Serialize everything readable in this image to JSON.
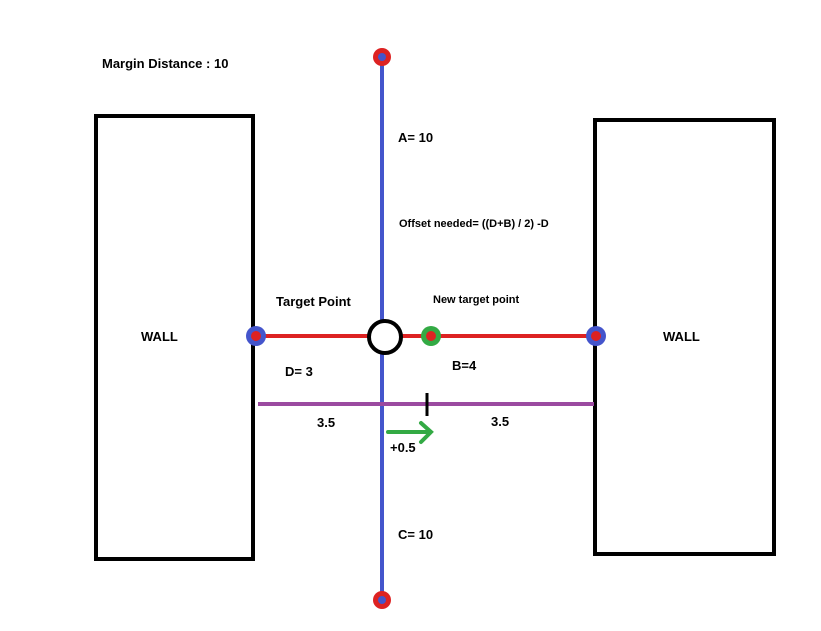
{
  "labels": {
    "margin_distance": "Margin Distance : 10",
    "a_value": "A= 10",
    "offset_formula": "Offset needed= ((D+B) / 2)  -D",
    "target_point": "Target Point",
    "new_target_point": "New target point",
    "wall_left": "WALL",
    "wall_right": "WALL",
    "d_value": "D= 3",
    "b_value": "B=4",
    "half_left": "3.5",
    "half_right": "3.5",
    "offset_value": "+0.5",
    "c_value": "C= 10"
  },
  "colors": {
    "wall_border": "#000000",
    "vertical_axis": "#4455cc",
    "horizontal_axis": "#dd2222",
    "midline": "#9b4aa0",
    "endpoint_fill": "#dd2222",
    "endpoint_ring_red": "#dd2222",
    "endpoint_ring_blue": "#4455cc",
    "target_ring": "#000000",
    "new_target_ring": "#33aa44",
    "offset_arrow": "#33aa44"
  }
}
